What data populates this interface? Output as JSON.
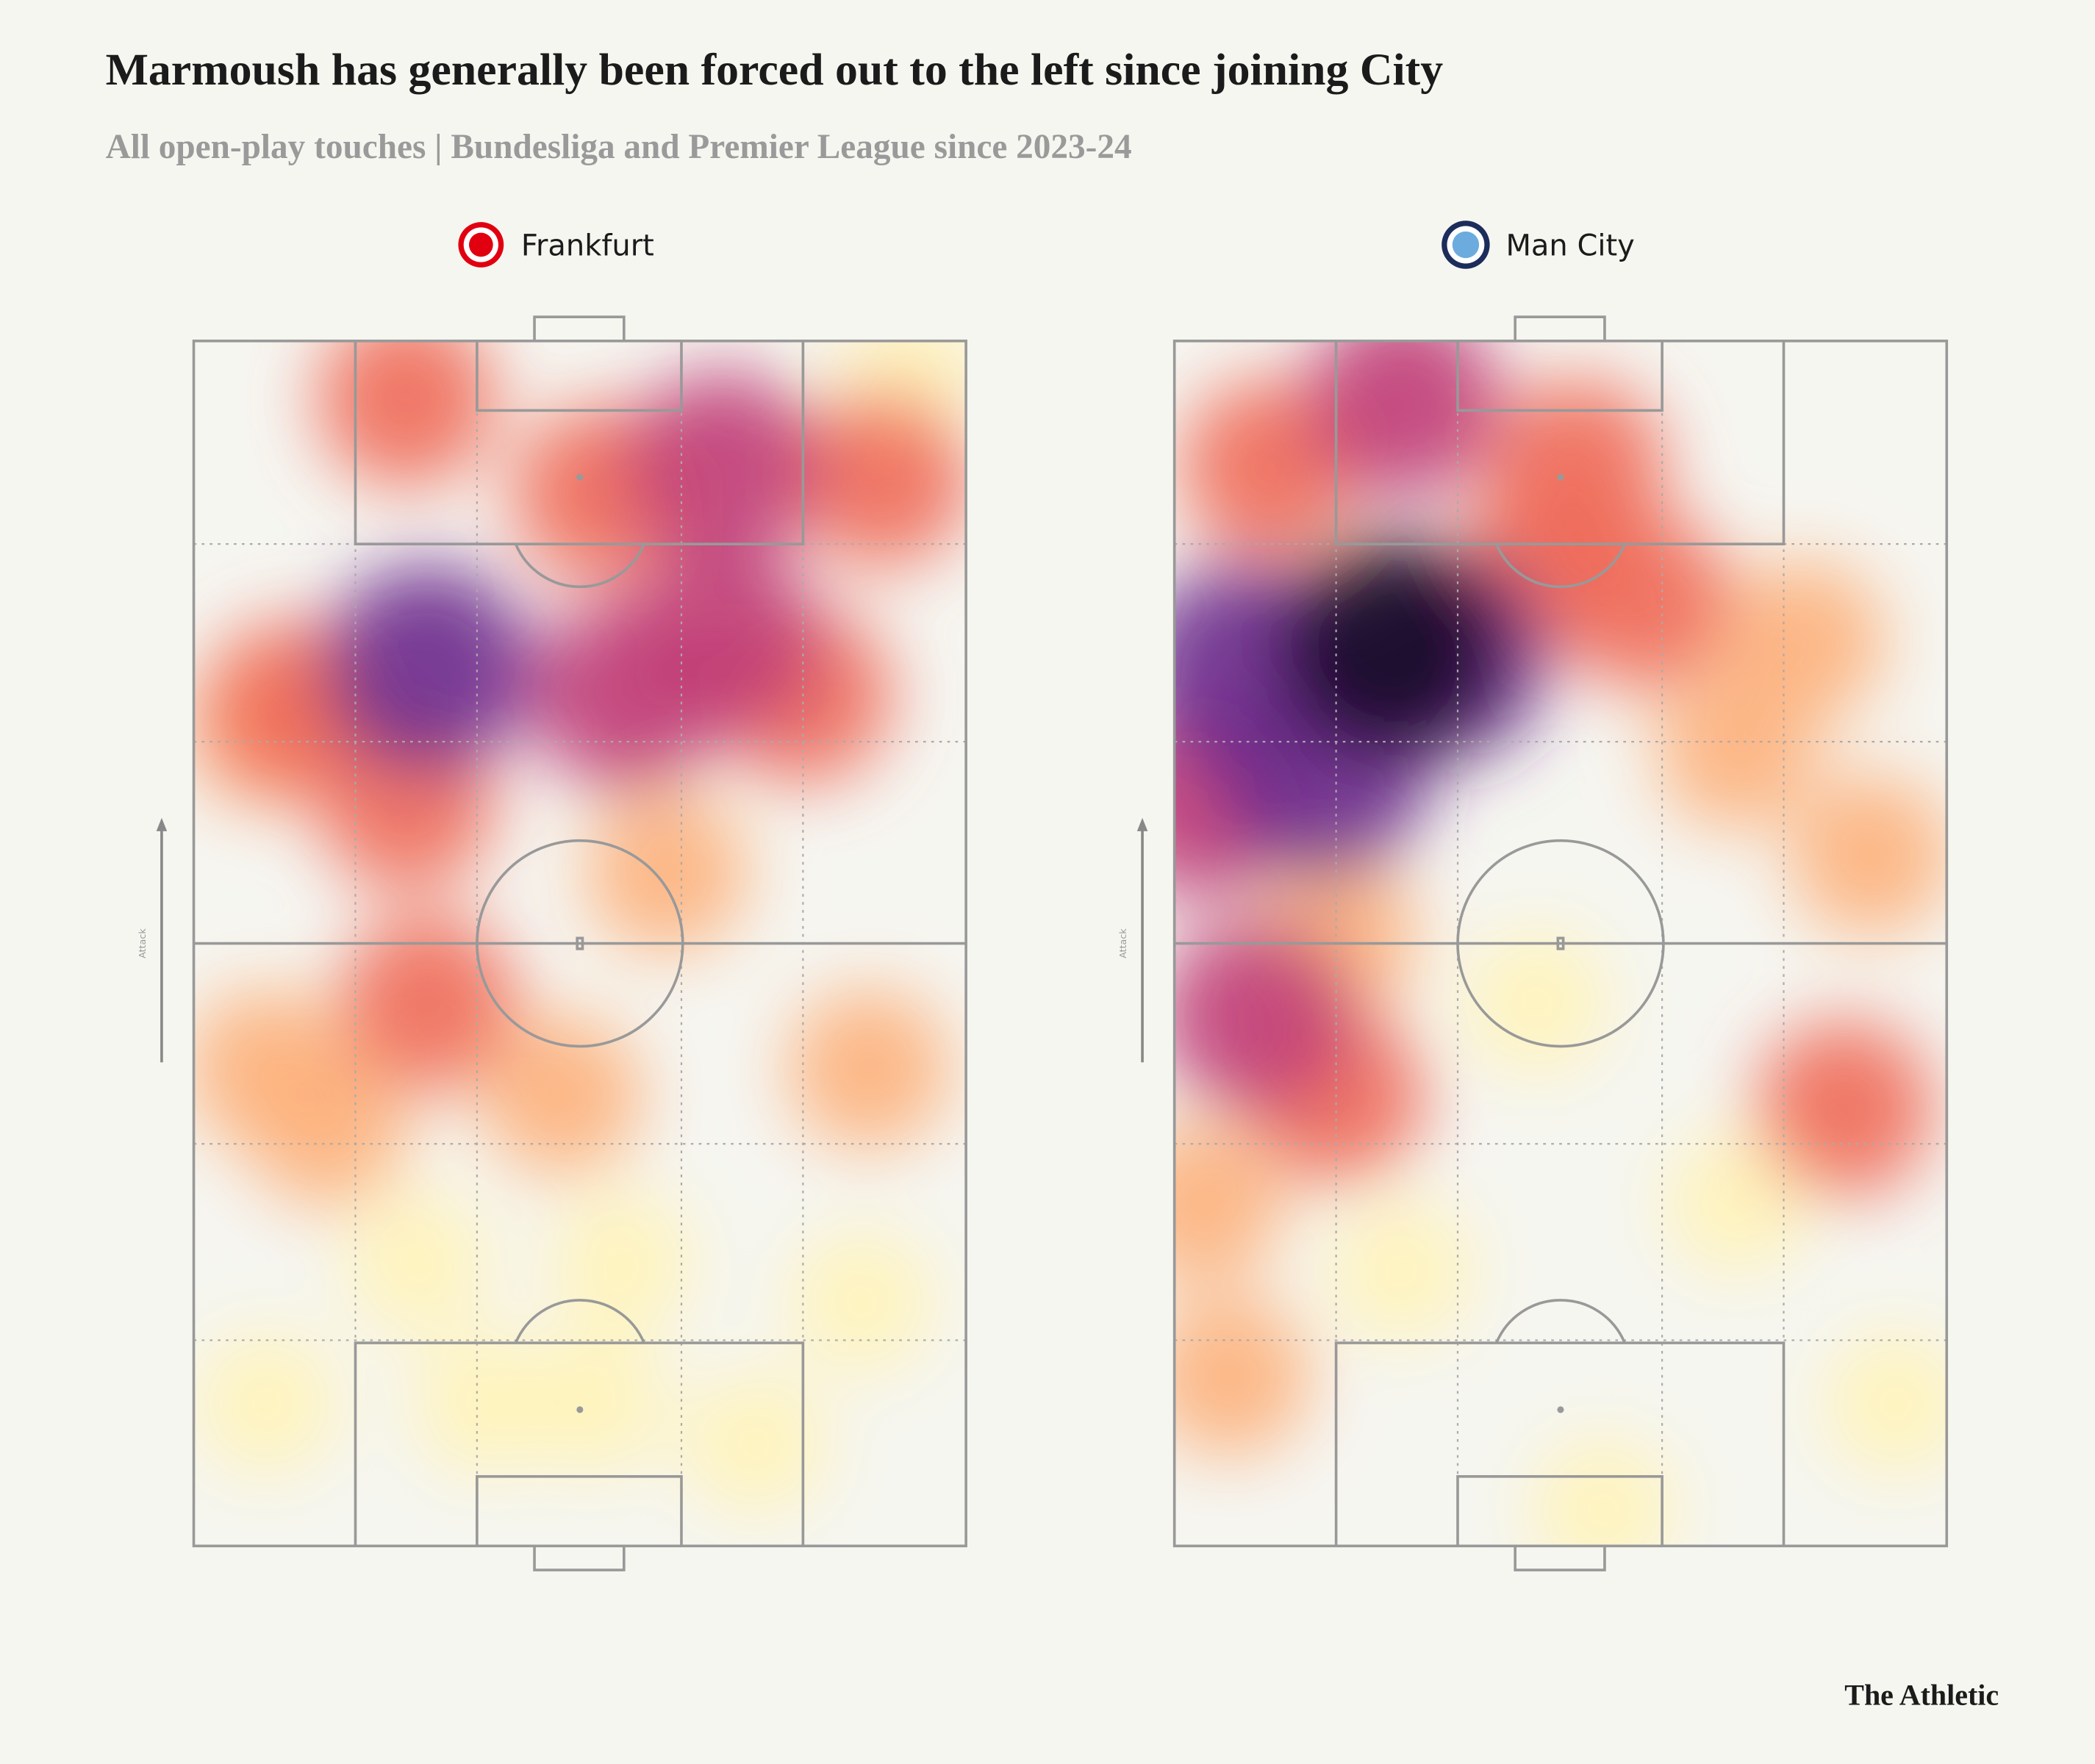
{
  "title": "Marmoush has generally been forced out to the left since joining City",
  "subtitle": "All open-play touches | Bundesliga and Premier League since 2023-24",
  "brand": "The Athletic",
  "chart_data": [
    {
      "type": "heatmap",
      "title": "Frankfurt",
      "attack_label": "Attack",
      "colors": [
        "#fff3b8",
        "#fdb07a",
        "#f06a58",
        "#c03c76",
        "#6b2a8c",
        "#170b26"
      ],
      "x": [
        37.7,
        17.3,
        86.5,
        9.5,
        28.9,
        55.4,
        51.9,
        72.7,
        9.5,
        61.2,
        92.6,
        13.0,
        27.5,
        78.9,
        27.5,
        52.8,
        89.1,
        68.4,
        56.1,
        30.3,
        68.4,
        9.5,
        47.6,
        87.4,
        30.3
      ],
      "y": [
        11.8,
        34.8,
        20.3,
        11.8,
        23.5,
        23.5,
        11.8,
        8.5,
        68.0,
        55.9,
        97.0,
        69.5,
        61.8,
        70.6,
        95.2,
        87.3,
        88.6,
        89.5,
        70.6,
        45.1,
        75.1,
        39.6,
        37.4,
        39.6,
        72.8
      ],
      "weights": [
        1,
        2,
        1,
        1,
        1,
        1,
        1,
        1,
        2,
        2,
        1,
        3,
        3,
        3,
        3,
        3,
        3,
        4,
        4,
        3,
        4,
        2,
        2,
        2,
        5
      ]
    },
    {
      "type": "heatmap",
      "title": "Man City",
      "attack_label": "Attack",
      "colors": [
        "#fff3b8",
        "#fdb07a",
        "#f06a58",
        "#c03c76",
        "#6b2a8c",
        "#170b26"
      ],
      "x": [
        55.5,
        46.9,
        72.8,
        93.4,
        29.4,
        7.1,
        3.5,
        20.9,
        81.5,
        90.1,
        72.8,
        48.4,
        12.3,
        52.1,
        60.8,
        20.9,
        86.7,
        29.6,
        10.6,
        3.6,
        19.2,
        8.8,
        34.8,
        27.9
      ],
      "y": [
        3.0,
        45.1,
        28.4,
        11.8,
        22.8,
        14.1,
        28.4,
        50.6,
        75.1,
        57.3,
        66.2,
        81.7,
        89.5,
        89.5,
        78.4,
        37.4,
        36.3,
        95.0,
        44.0,
        61.8,
        64.0,
        72.8,
        73.9,
        74.5
      ],
      "weights": [
        1,
        1,
        1,
        1,
        1,
        2,
        2,
        2,
        2,
        2,
        2,
        3,
        3,
        3,
        3,
        3,
        3,
        4,
        4,
        4,
        5,
        5,
        5,
        6
      ]
    }
  ]
}
